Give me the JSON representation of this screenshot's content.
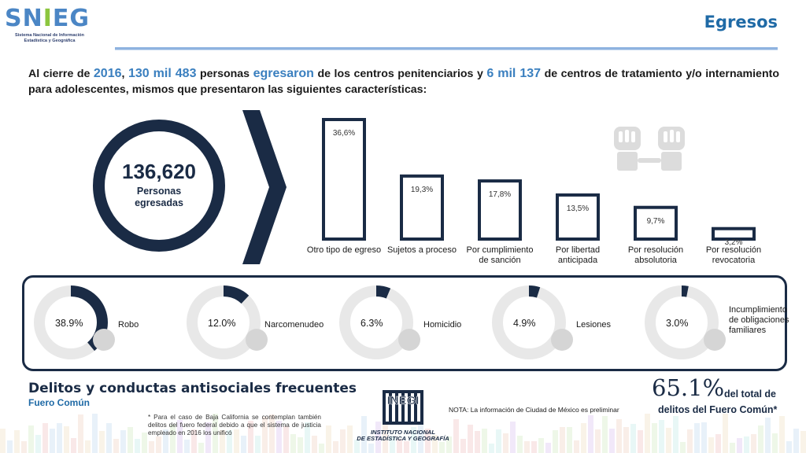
{
  "header": {
    "logo_word": {
      "sn": "SN",
      "i": "I",
      "eg": "EG"
    },
    "logo_sub": "Sistema Nacional de Información Estadística y Geográfica",
    "title": "Egresos"
  },
  "intro": {
    "p1": "Al cierre de ",
    "year": "2016",
    "p2": ", ",
    "n1": "130 mil 483",
    "p3": " personas ",
    "verb": "egresaron",
    "p4": " de los centros penitenciarios y ",
    "n2": "6 mil 137",
    "p5": " de centros de tratamiento y/o internamiento para adolescentes, mismos que presentaron las siguientes características:"
  },
  "total": {
    "value": "136,620",
    "label_line1": "Personas",
    "label_line2": "egresadas"
  },
  "chart_data": {
    "type": "bar",
    "categories": [
      "Otro tipo de egreso",
      "Sujetos a proceso",
      "Por cumplimiento de sanción",
      "Por libertad anticipada",
      "Por resolución absolutoria",
      "Por resolución revocatoria"
    ],
    "values": [
      36.6,
      19.3,
      17.8,
      13.5,
      9.7,
      3.2
    ],
    "value_labels": [
      "36,6%",
      "19,3%",
      "17,8%",
      "13,5%",
      "9,7%",
      "3,2%"
    ],
    "bar_color": "#1a2b45"
  },
  "crimes": [
    {
      "label": "Robo",
      "pct": "38.9%",
      "value": 38.9,
      "icon": "money-bag-icon"
    },
    {
      "label": "Narcomenudeo",
      "pct": "12.0%",
      "value": 12.0,
      "icon": "pills-icon"
    },
    {
      "label": "Homicidio",
      "pct": "6.3%",
      "value": 6.3,
      "icon": "pistol-icon"
    },
    {
      "label": "Lesiones",
      "pct": "4.9%",
      "value": 4.9,
      "icon": "injury-icon"
    },
    {
      "label": "Incumplimiento de obligaciones familiares",
      "pct": "3.0%",
      "value": 3.0,
      "icon": "family-icon"
    }
  ],
  "bottom": {
    "section_title": "Delitos y conductas antisociales frecuentes",
    "section_sub": "Fuero Común",
    "footnote": "* Para el caso de Baja California se contemplan también delitos del fuero federal debido a que el sistema de justicia empleado en 2016 los unificó",
    "nota": "NOTA: La información de Ciudad de México es preliminar",
    "big_pct": "65.1%",
    "big_pct_line1": "del total de",
    "big_pct_line2": "delitos del Fuero Común*",
    "inegi_word": "INEGI",
    "inegi_line1": "INSTITUTO NACIONAL",
    "inegi_line2": "DE ESTADÍSTICA Y GEOGRAFÍA"
  },
  "colors": {
    "navy": "#1a2b45",
    "accent_blue": "#3a7fbf",
    "title_blue": "#1f6aa6",
    "ring_grey": "#e8e8e8"
  }
}
